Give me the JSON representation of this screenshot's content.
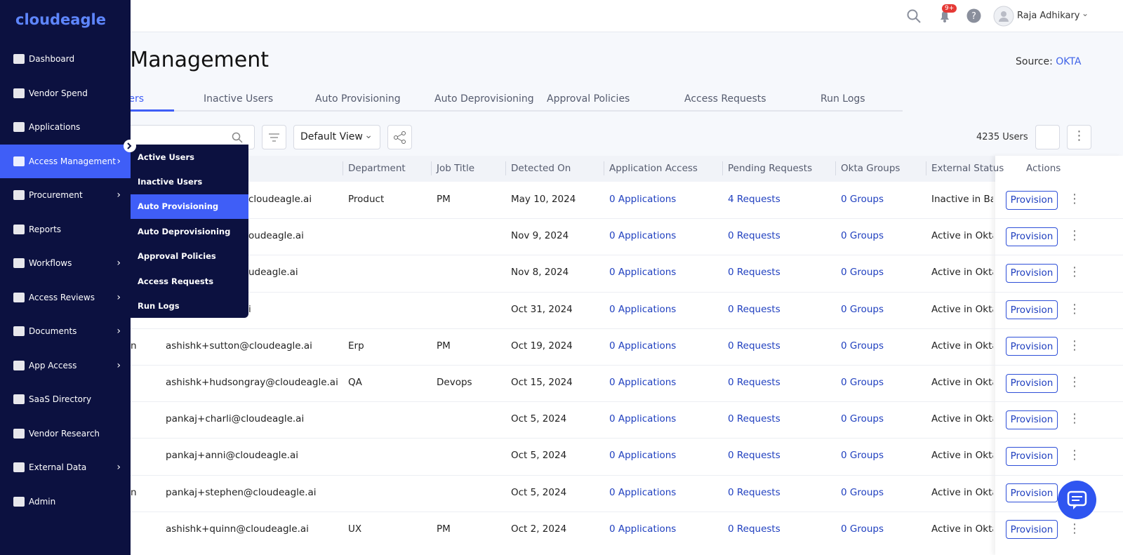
{
  "logo": "cloudeagle",
  "header": {
    "badge": "9+",
    "user": "Raja Adhikary"
  },
  "sidebar": {
    "items": [
      "Dashboard",
      "Vendor Spend",
      "Applications",
      "Access Management",
      "Procurement",
      "Reports",
      "Workflows",
      "Access Reviews",
      "Documents",
      "App Access",
      "SaaS Directory",
      "Vendor Research",
      "External Data",
      "Admin"
    ]
  },
  "submenu": {
    "items": [
      "Active Users",
      "Inactive Users",
      "Auto Provisioning",
      "Auto Deprovisioning",
      "Approval Policies",
      "Access Requests",
      "Run Logs"
    ]
  },
  "page": {
    "title": "Access Management",
    "source_label": "Source:",
    "source": "OKTA"
  },
  "tabs": [
    "Active Users",
    "Inactive Users",
    "Auto Provisioning",
    "Auto Deprovisioning",
    "Approval Policies",
    "Access Requests",
    "Run Logs"
  ],
  "toolbar": {
    "view": "Default View",
    "count": "4235 Users"
  },
  "table": {
    "columns": [
      "Department",
      "Job Title",
      "Detected On",
      "Application Access",
      "Pending Requests",
      "Okta Groups",
      "External Status",
      "Actions"
    ],
    "rows": [
      {
        "email": "cloudeagle.ai",
        "department": "Product",
        "job": "PM",
        "detected": "May 10, 2024",
        "apps": "0 Applications",
        "requests": "4 Requests",
        "groups": "0 Groups",
        "status": "Inactive in Bam",
        "action": "Provision"
      },
      {
        "email": "oudeagle.ai",
        "detected": "Nov 9, 2024",
        "apps": "0 Applications",
        "requests": "0 Requests",
        "groups": "0 Groups",
        "status": "Active in Okta",
        "action": "Provision"
      },
      {
        "email": "udeagle.ai",
        "detected": "Nov 8, 2024",
        "apps": "0 Applications",
        "requests": "0 Requests",
        "groups": "0 Groups",
        "status": "Active in Okta",
        "action": "Provision"
      },
      {
        "email": "i",
        "detected": "Oct 31, 2024",
        "apps": "0 Applications",
        "requests": "0 Requests",
        "groups": "0 Groups",
        "status": "Active in Okta",
        "action": "Provision"
      },
      {
        "name": "n",
        "email": "ashishk+sutton@cloudeagle.ai",
        "department": "Erp",
        "job": "PM",
        "detected": "Oct 19, 2024",
        "apps": "0 Applications",
        "requests": "0 Requests",
        "groups": "0 Groups",
        "status": "Active in Okta",
        "action": "Provision"
      },
      {
        "email": "ashishk+hudsongray@cloudeagle.ai",
        "department": "QA",
        "job": "Devops",
        "detected": "Oct 15, 2024",
        "apps": "0 Applications",
        "requests": "0 Requests",
        "groups": "0 Groups",
        "status": "Active in Okta",
        "action": "Provision"
      },
      {
        "email": "pankaj+charli@cloudeagle.ai",
        "detected": "Oct 5, 2024",
        "apps": "0 Applications",
        "requests": "0 Requests",
        "groups": "0 Groups",
        "status": "Active in Okta",
        "action": "Provision"
      },
      {
        "email": "pankaj+anni@cloudeagle.ai",
        "detected": "Oct 5, 2024",
        "apps": "0 Applications",
        "requests": "0 Requests",
        "groups": "0 Groups",
        "status": "Active in Okta",
        "action": "Provision"
      },
      {
        "name": "n",
        "email": "pankaj+stephen@cloudeagle.ai",
        "detected": "Oct 5, 2024",
        "apps": "0 Applications",
        "requests": "0 Requests",
        "groups": "0 Groups",
        "status": "Active in Okta",
        "action": "Provision"
      },
      {
        "email": "ashishk+quinn@cloudeagle.ai",
        "department": "UX",
        "job": "PM",
        "detected": "Oct 2, 2024",
        "apps": "0 Applications",
        "requests": "0 Requests",
        "groups": "0 Groups",
        "status": "Active in Okta",
        "action": "Provision"
      }
    ]
  }
}
